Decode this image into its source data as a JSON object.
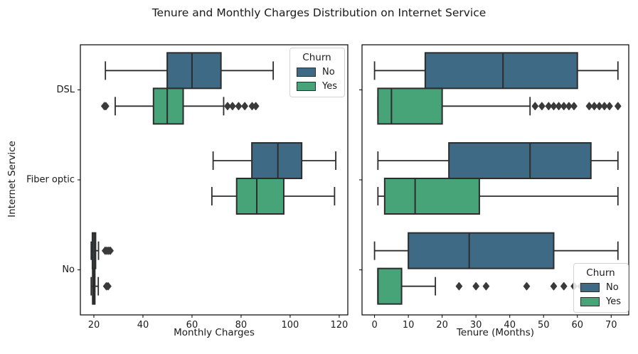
{
  "title": "Tenure and Monthly Charges Distribution on Internet Service",
  "ylabel": "Internet Service",
  "legend": {
    "title": "Churn",
    "items": [
      {
        "label": "No",
        "color_key": "no"
      },
      {
        "label": "Yes",
        "color_key": "yes"
      }
    ]
  },
  "colors": {
    "no": "#3e6a85",
    "yes": "#47a478",
    "edge": "#2d2d2d",
    "flier": "#3a3a3a",
    "axis": "#000000"
  },
  "chart_data": [
    {
      "type": "box",
      "orientation": "horizontal",
      "xlabel": "Monthly Charges",
      "categories": [
        "DSL",
        "Fiber optic",
        "No"
      ],
      "xlim": [
        14.5,
        123.5
      ],
      "xticks": [
        20,
        40,
        60,
        80,
        100,
        120
      ],
      "grid": false,
      "show_y_tick_labels": true,
      "legend_position": "upper-right",
      "series": [
        {
          "name": "No",
          "boxes": [
            {
              "whisker_low": 24.7,
              "q1": 49.9,
              "median": 60.0,
              "q3": 71.8,
              "whisker_high": 93.1,
              "outliers": []
            },
            {
              "whisker_low": 68.6,
              "q1": 84.4,
              "median": 95.0,
              "q3": 104.7,
              "whisker_high": 118.6,
              "outliers": []
            },
            {
              "whisker_low": 18.9,
              "q1": 19.4,
              "median": 20.1,
              "q3": 20.7,
              "whisker_high": 21.9,
              "outliers": [
                24.6,
                25.3,
                26.0,
                26.7
              ]
            }
          ]
        },
        {
          "name": "Yes",
          "boxes": [
            {
              "whisker_low": 28.7,
              "q1": 44.3,
              "median": 49.9,
              "q3": 56.4,
              "whisker_high": 72.9,
              "outliers": [
                24.3,
                24.9,
                74.5,
                76.5,
                79.0,
                81.5,
                84.5,
                86.0
              ]
            },
            {
              "whisker_low": 68.1,
              "q1": 78.2,
              "median": 86.4,
              "q3": 97.4,
              "whisker_high": 118.1,
              "outliers": []
            },
            {
              "whisker_low": 18.9,
              "q1": 19.5,
              "median": 20.0,
              "q3": 20.4,
              "whisker_high": 21.8,
              "outliers": [
                25.1,
                25.8
              ]
            }
          ]
        }
      ]
    },
    {
      "type": "box",
      "orientation": "horizontal",
      "xlabel": "Tenure (Months)",
      "categories": [
        "DSL",
        "Fiber optic",
        "No"
      ],
      "xlim": [
        -3.7,
        75.2
      ],
      "xticks": [
        0,
        10,
        20,
        30,
        40,
        50,
        60,
        70
      ],
      "grid": false,
      "show_y_tick_labels": false,
      "legend_position": "lower-right",
      "series": [
        {
          "name": "No",
          "boxes": [
            {
              "whisker_low": 0,
              "q1": 15,
              "median": 38,
              "q3": 60,
              "whisker_high": 72,
              "outliers": []
            },
            {
              "whisker_low": 1,
              "q1": 22,
              "median": 46,
              "q3": 64,
              "whisker_high": 72,
              "outliers": []
            },
            {
              "whisker_low": 0,
              "q1": 10,
              "median": 28,
              "q3": 53,
              "whisker_high": 72,
              "outliers": []
            }
          ]
        },
        {
          "name": "Yes",
          "boxes": [
            {
              "whisker_low": 1,
              "q1": 1,
              "median": 5,
              "q3": 20,
              "whisker_high": 46,
              "outliers": [
                47.5,
                49.5,
                51.5,
                53,
                54.5,
                56,
                57.5,
                59,
                63.5,
                65,
                66.5,
                68,
                69.5,
                72
              ]
            },
            {
              "whisker_low": 1,
              "q1": 3,
              "median": 12,
              "q3": 31,
              "whisker_high": 72,
              "outliers": []
            },
            {
              "whisker_low": 1,
              "q1": 1,
              "median": 1,
              "q3": 8,
              "whisker_high": 18,
              "outliers": [
                25,
                30,
                33,
                45,
                53,
                56,
                59,
                61
              ]
            }
          ]
        }
      ]
    }
  ]
}
